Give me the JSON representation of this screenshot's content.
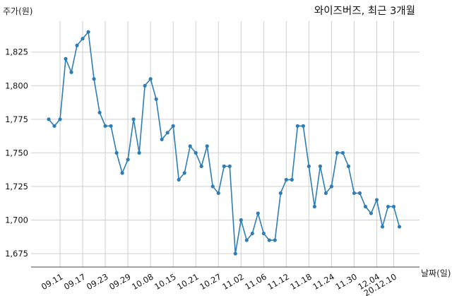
{
  "chart_data": {
    "type": "line",
    "title": "와이즈버즈, 최근 3개월",
    "xlabel": "날짜(일)",
    "ylabel": "주가(원)",
    "ylim": [
      1665,
      1848
    ],
    "yticks": [
      1675,
      1700,
      1725,
      1750,
      1775,
      1800,
      1825
    ],
    "ytick_labels": [
      "1,675",
      "1,700",
      "1,725",
      "1,750",
      "1,775",
      "1,800",
      "1,825"
    ],
    "xtick_labels": [
      "09.11",
      "09.17",
      "09.23",
      "09.29",
      "10.08",
      "10.15",
      "10.21",
      "10.27",
      "11.02",
      "11.06",
      "11.12",
      "11.18",
      "11.24",
      "11.30",
      "12.04",
      "20.12.10"
    ],
    "xtick_indices": [
      2,
      6,
      10,
      14,
      18,
      22,
      26,
      30,
      34,
      38,
      42,
      46,
      50,
      54,
      58,
      61
    ],
    "grid": true,
    "color": "#2e7db5",
    "series": [
      {
        "values": [
          1775,
          1770,
          1775,
          1820,
          1810,
          1830,
          1835,
          1840,
          1805,
          1780,
          1770,
          1770,
          1750,
          1735,
          1745,
          1775,
          1750,
          1800,
          1805,
          1790,
          1760,
          1765,
          1770,
          1730,
          1735,
          1755,
          1750,
          1740,
          1755,
          1725,
          1720,
          1740,
          1740,
          1675,
          1700,
          1685,
          1690,
          1705,
          1690,
          1685,
          1685,
          1720,
          1730,
          1730,
          1770,
          1770,
          1740,
          1710,
          1740,
          1720,
          1725,
          1750,
          1750,
          1740,
          1720,
          1720,
          1710,
          1705,
          1715,
          1695,
          1710,
          1710,
          1695
        ]
      }
    ]
  }
}
